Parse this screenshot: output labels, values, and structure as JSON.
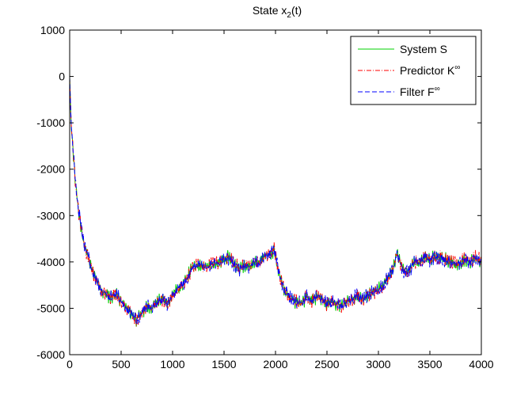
{
  "chart_data": {
    "type": "line",
    "title": "State x",
    "title_sub": "2",
    "title_tail": "(t)",
    "xlabel": "",
    "ylabel": "",
    "xlim": [
      0,
      4000
    ],
    "ylim": [
      -6000,
      1000
    ],
    "xticks": [
      0,
      500,
      1000,
      1500,
      2000,
      2500,
      3000,
      3500,
      4000
    ],
    "yticks": [
      -6000,
      -5000,
      -4000,
      -3000,
      -2000,
      -1000,
      0,
      1000
    ],
    "grid": false,
    "legend_position": "top-right",
    "trend": {
      "x": [
        0,
        10,
        20,
        40,
        60,
        80,
        100,
        120,
        150,
        180,
        220,
        260,
        300,
        350,
        400,
        450,
        500,
        550,
        600,
        650,
        700,
        750,
        800,
        850,
        900,
        950,
        1000,
        1050,
        1100,
        1150,
        1200,
        1250,
        1300,
        1350,
        1400,
        1450,
        1500,
        1550,
        1600,
        1650,
        1700,
        1750,
        1800,
        1850,
        1900,
        1950,
        1990,
        2000,
        2050,
        2100,
        2150,
        2200,
        2250,
        2300,
        2350,
        2400,
        2450,
        2500,
        2550,
        2600,
        2650,
        2700,
        2750,
        2800,
        2850,
        2900,
        2950,
        3000,
        3050,
        3100,
        3150,
        3180,
        3200,
        3250,
        3300,
        3350,
        3400,
        3450,
        3500,
        3550,
        3600,
        3650,
        3700,
        3750,
        3800,
        3850,
        3900,
        3950,
        4000
      ],
      "y": [
        0,
        -800,
        -1200,
        -1800,
        -2400,
        -2800,
        -3100,
        -3400,
        -3700,
        -3900,
        -4200,
        -4400,
        -4600,
        -4700,
        -4750,
        -4700,
        -4850,
        -5000,
        -5100,
        -5250,
        -5100,
        -4950,
        -5000,
        -4850,
        -4800,
        -4900,
        -4700,
        -4550,
        -4500,
        -4300,
        -4100,
        -4050,
        -4100,
        -4100,
        -4000,
        -4050,
        -3950,
        -3900,
        -4050,
        -4150,
        -4050,
        -4100,
        -4000,
        -4000,
        -3850,
        -3850,
        -3700,
        -3900,
        -4400,
        -4650,
        -4800,
        -4850,
        -4900,
        -4750,
        -4850,
        -4750,
        -4800,
        -4900,
        -4850,
        -4900,
        -4950,
        -4850,
        -4800,
        -4700,
        -4800,
        -4700,
        -4650,
        -4600,
        -4500,
        -4300,
        -4100,
        -3800,
        -3950,
        -4200,
        -4200,
        -4000,
        -4000,
        -3900,
        -3950,
        -3900,
        -3900,
        -3950,
        -4000,
        -4050,
        -4000,
        -3950,
        -4000,
        -3900,
        -4000
      ]
    },
    "series": [
      {
        "name": "System S",
        "name_sup": "",
        "color": "#00d000",
        "dash": "solid",
        "jitter_seed": 11
      },
      {
        "name": "Predictor K",
        "name_sup": "∞",
        "color": "#ff0000",
        "dash": "dashdot",
        "jitter_seed": 23
      },
      {
        "name": "Filter F",
        "name_sup": "∞",
        "color": "#0000ff",
        "dash": "dash",
        "jitter_seed": 37
      }
    ]
  }
}
